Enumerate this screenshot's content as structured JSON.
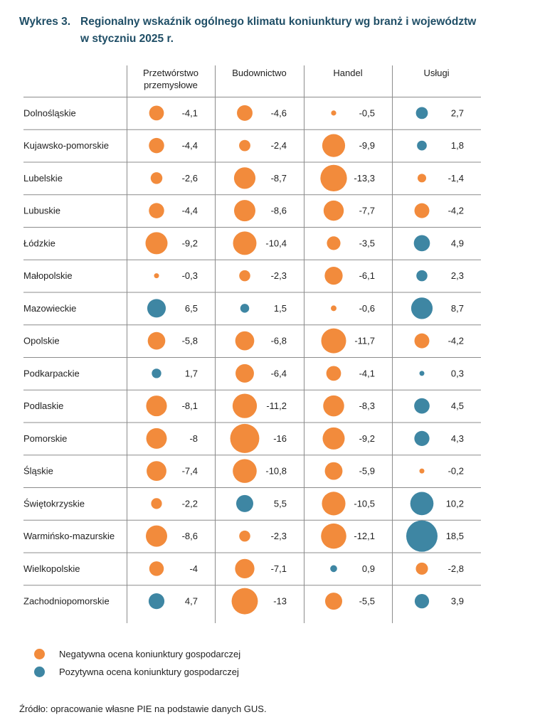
{
  "title": {
    "number": "Wykres 3.",
    "line1": "Regionalny wskaźnik ogólnego klimatu koniunktury wg branż i województw",
    "line2": "w styczniu 2025 r."
  },
  "colors": {
    "negative": "#f28b3c",
    "positive": "#3e86a3",
    "grid": "#8c8c8c"
  },
  "chart_data": {
    "type": "table",
    "columns": [
      {
        "name": "Przetwórstwo przemysłowe",
        "label_lines": [
          "Przetwórstwo",
          "przemysłowe"
        ]
      },
      {
        "name": "Budownictwo",
        "label_lines": [
          "Budownictwo"
        ]
      },
      {
        "name": "Handel",
        "label_lines": [
          "Handel"
        ]
      },
      {
        "name": "Usługi",
        "label_lines": [
          "Usługi"
        ]
      }
    ],
    "rows": [
      {
        "region": "Dolnośląskie",
        "values": [
          -4.1,
          -4.6,
          -0.5,
          2.7
        ],
        "labels": [
          "-4,1",
          "-4,6",
          "-0,5",
          "2,7"
        ]
      },
      {
        "region": "Kujawsko-pomorskie",
        "values": [
          -4.4,
          -2.4,
          -9.9,
          1.8
        ],
        "labels": [
          "-4,4",
          "-2,4",
          "-9,9",
          "1,8"
        ]
      },
      {
        "region": "Lubelskie",
        "values": [
          -2.6,
          -8.7,
          -13.3,
          -1.4
        ],
        "labels": [
          "-2,6",
          "-8,7",
          "-13,3",
          "-1,4"
        ]
      },
      {
        "region": "Lubuskie",
        "values": [
          -4.4,
          -8.6,
          -7.7,
          -4.2
        ],
        "labels": [
          "-4,4",
          "-8,6",
          "-7,7",
          "-4,2"
        ]
      },
      {
        "region": "Łódzkie",
        "values": [
          -9.2,
          -10.4,
          -3.5,
          4.9
        ],
        "labels": [
          "-9,2",
          "-10,4",
          "-3,5",
          "4,9"
        ]
      },
      {
        "region": "Małopolskie",
        "values": [
          -0.3,
          -2.3,
          -6.1,
          2.3
        ],
        "labels": [
          "-0,3",
          "-2,3",
          "-6,1",
          "2,3"
        ]
      },
      {
        "region": "Mazowieckie",
        "values": [
          6.5,
          1.5,
          -0.6,
          8.7
        ],
        "labels": [
          "6,5",
          "1,5",
          "-0,6",
          "8,7"
        ]
      },
      {
        "region": "Opolskie",
        "values": [
          -5.8,
          -6.8,
          -11.7,
          -4.2
        ],
        "labels": [
          "-5,8",
          "-6,8",
          "-11,7",
          "-4,2"
        ]
      },
      {
        "region": "Podkarpackie",
        "values": [
          1.7,
          -6.4,
          -4.1,
          0.3
        ],
        "labels": [
          "1,7",
          "-6,4",
          "-4,1",
          "0,3"
        ]
      },
      {
        "region": "Podlaskie",
        "values": [
          -8.1,
          -11.2,
          -8.3,
          4.5
        ],
        "labels": [
          "-8,1",
          "-11,2",
          "-8,3",
          "4,5"
        ]
      },
      {
        "region": "Pomorskie",
        "values": [
          -8,
          -16,
          -9.2,
          4.3
        ],
        "labels": [
          "-8",
          "-16",
          "-9,2",
          "4,3"
        ]
      },
      {
        "region": "Śląskie",
        "values": [
          -7.4,
          -10.8,
          -5.9,
          -0.2
        ],
        "labels": [
          "-7,4",
          "-10,8",
          "-5,9",
          "-0,2"
        ]
      },
      {
        "region": "Świętokrzyskie",
        "values": [
          -2.2,
          5.5,
          -10.5,
          10.2
        ],
        "labels": [
          "-2,2",
          "5,5",
          "-10,5",
          "10,2"
        ]
      },
      {
        "region": "Warmińsko-mazurskie",
        "values": [
          -8.6,
          -2.3,
          -12.1,
          18.5
        ],
        "labels": [
          "-8,6",
          "-2,3",
          "-12,1",
          "18,5"
        ]
      },
      {
        "region": "Wielkopolskie",
        "values": [
          -4,
          -7.1,
          0.9,
          -2.8
        ],
        "labels": [
          "-4",
          "-7,1",
          "0,9",
          "-2,8"
        ]
      },
      {
        "region": "Zachodniopomorskie",
        "values": [
          4.7,
          -13,
          -5.5,
          3.9
        ],
        "labels": [
          "4,7",
          "-13",
          "-5,5",
          "3,9"
        ]
      }
    ]
  },
  "legend": {
    "negative_label": "Negatywna ocena koniunktury gospodarczej",
    "positive_label": "Pozytywna ocena koniunktury gospodarczej"
  },
  "source": "Źródło: opracowanie własne PIE na podstawie danych GUS."
}
